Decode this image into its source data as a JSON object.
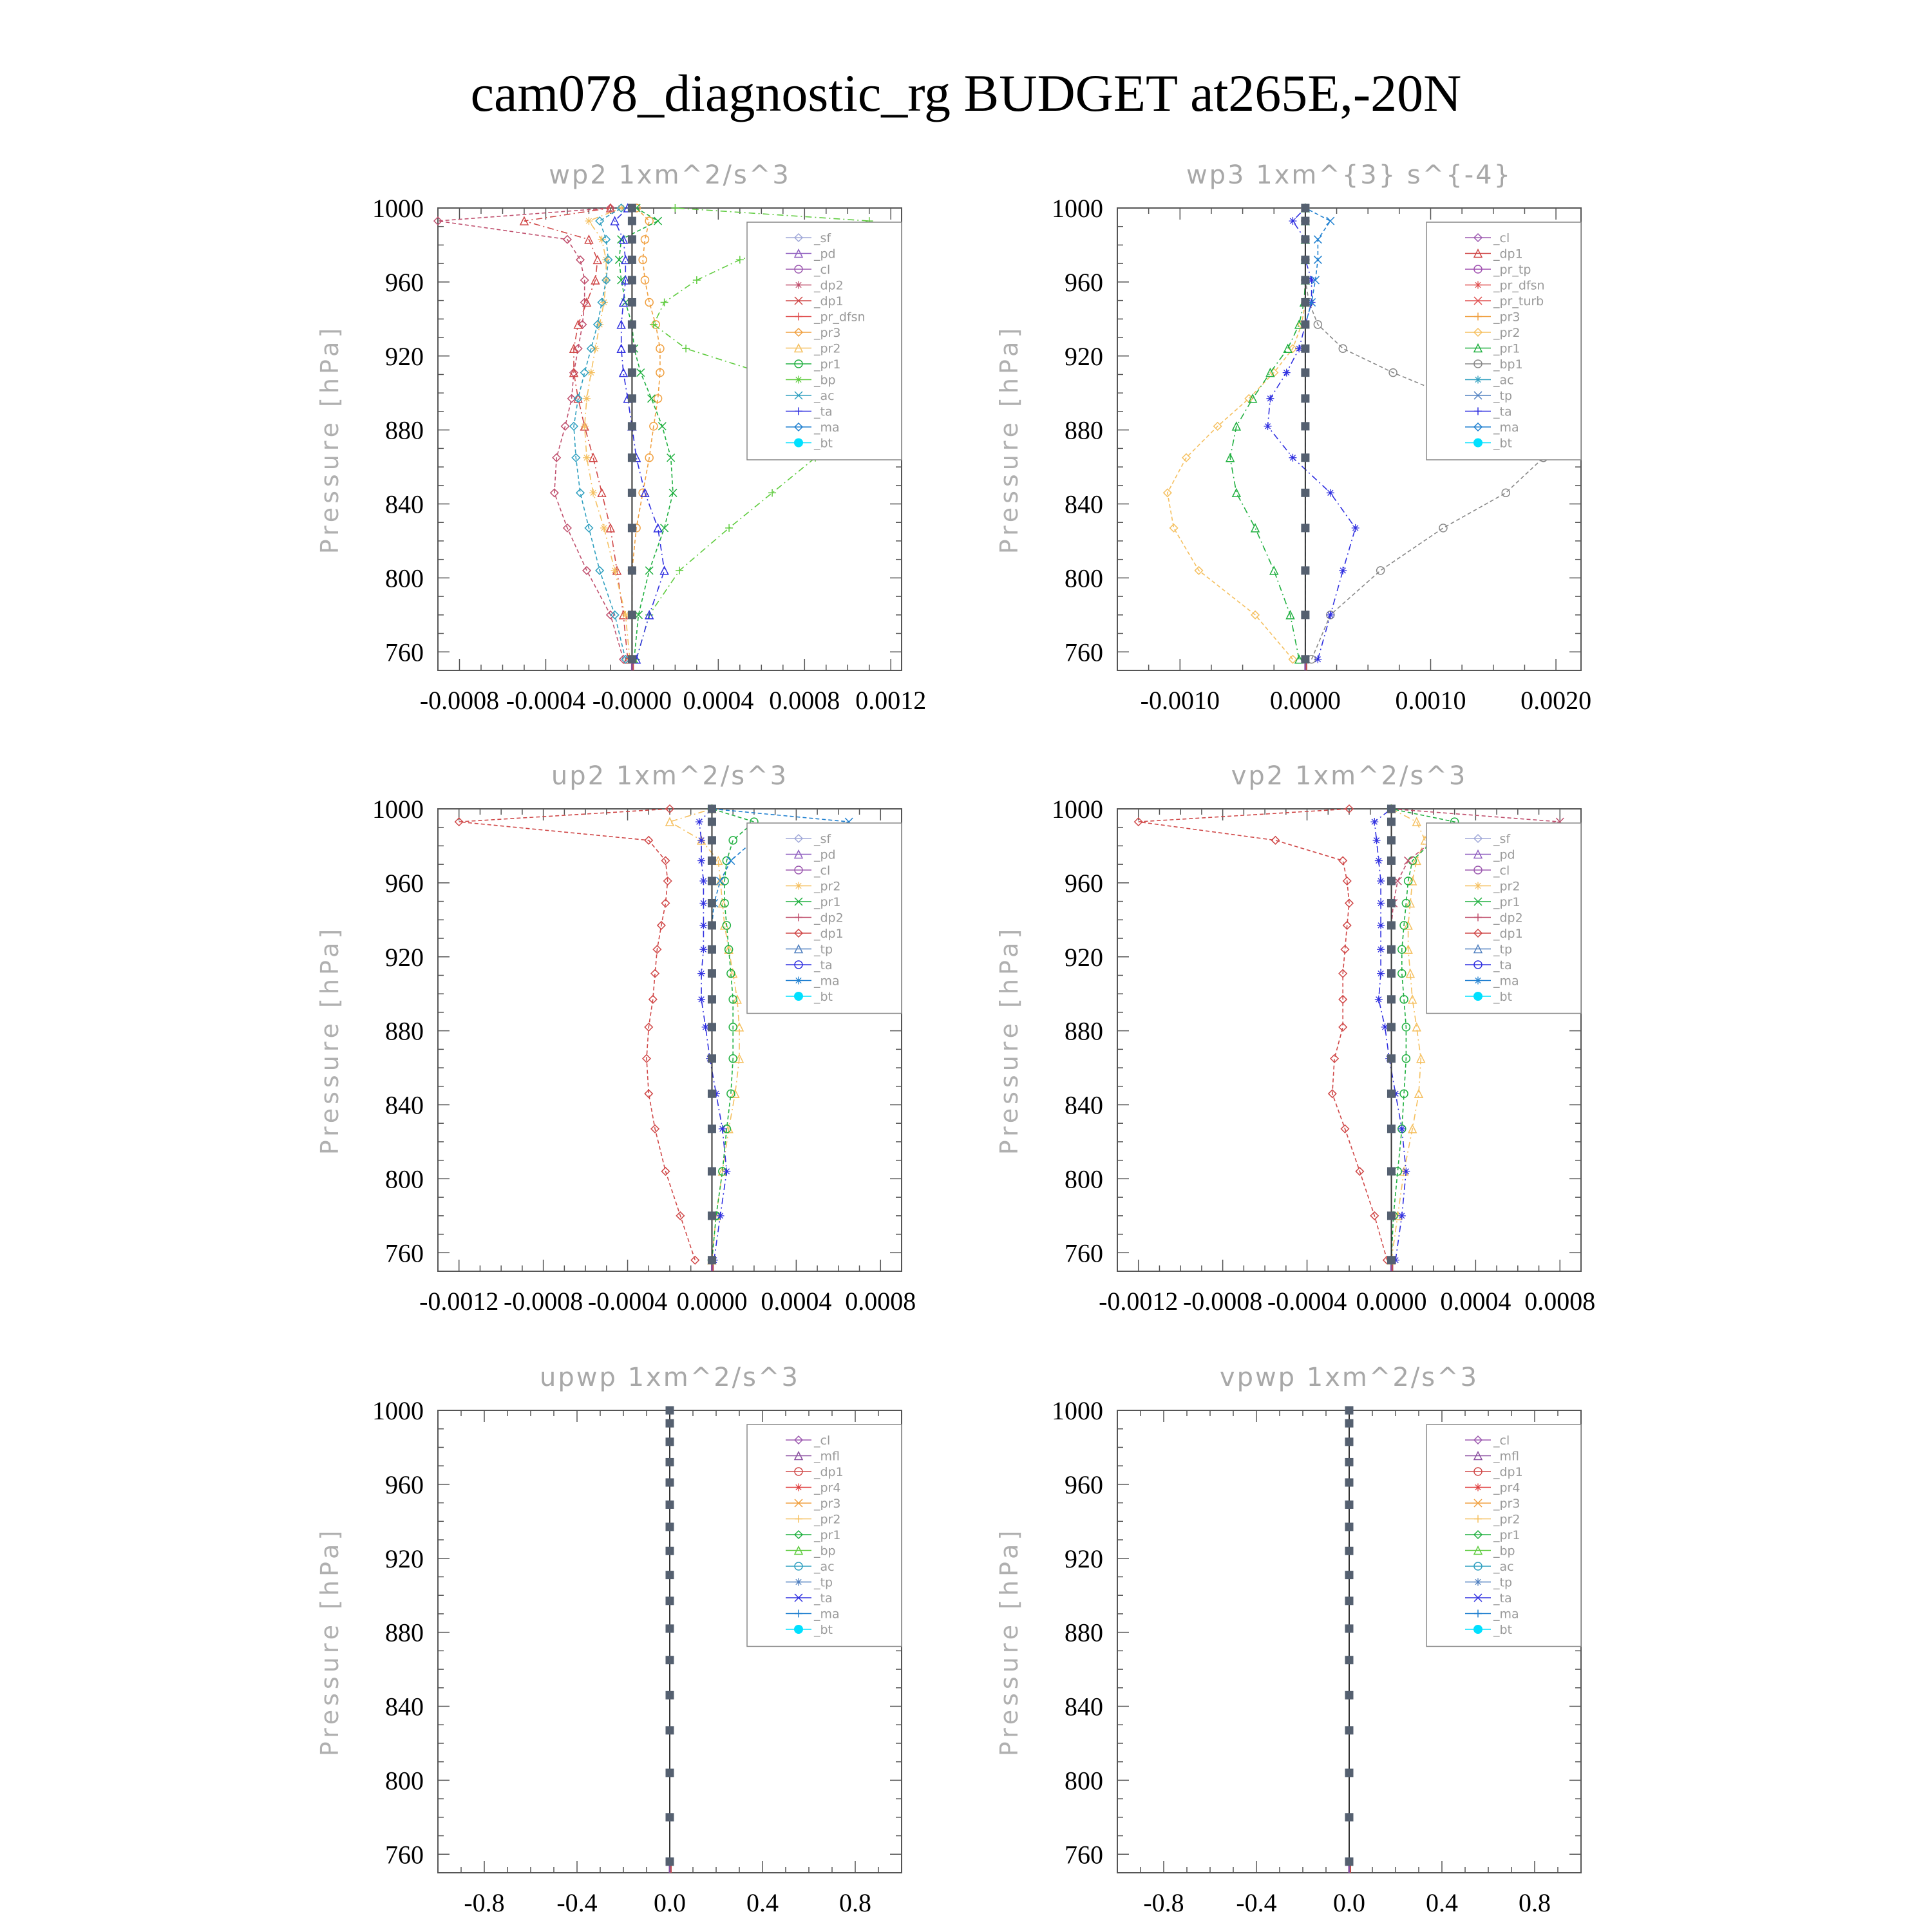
{
  "figure": {
    "title": "cam078_diagnostic_rg  BUDGET at265E,-20N"
  },
  "colors": {
    "sf": "#a0a8d8",
    "pd": "#9060c0",
    "cl": "#9d5ab0",
    "mfl": "#8a4fa0",
    "dp2": "#c0506e",
    "dp1": "#d04848",
    "pr4": "#e04040",
    "pr_dfsn": "#e05050",
    "pr_tp": "#a050b0",
    "pr_turb": "#e05050",
    "pr3": "#f0a040",
    "pr2": "#f5c060",
    "pr1": "#20b040",
    "bp": "#60cc40",
    "ac": "#30a0c0",
    "tp": "#5080c0",
    "ta": "#3030e0",
    "ma": "#2080d0",
    "bt": "#00e0ff"
  },
  "chart_data": [
    {
      "type": "line",
      "title": "wp2   1xm^2/s^3",
      "ylabel": "Pressure  [hPa]",
      "xlim": [
        -0.0009,
        0.00125
      ],
      "ylim": [
        1000,
        750
      ],
      "xticks": [
        -0.0008,
        -0.0004,
        0.0,
        0.0004,
        0.0008,
        0.0012
      ],
      "xtick_labels": [
        "-0.0008",
        "-0.0004",
        "-0.0000",
        "0.0004",
        "0.0008",
        "0.0012"
      ],
      "yticks": [
        760,
        800,
        840,
        880,
        920,
        960,
        1000
      ],
      "legend": [
        "_sf",
        "_pd",
        "_cl",
        "_dp2",
        "_dp1",
        "_pr_dfsn",
        "_pr3",
        "_pr2",
        "_pr1",
        "_bp",
        "_ac",
        "_ta",
        "_ma",
        "_bt"
      ],
      "legend_position": "top-right",
      "y": [
        756,
        780,
        804,
        827,
        846,
        865,
        882,
        897,
        911,
        924,
        937,
        949,
        961,
        972,
        983,
        993,
        1000
      ],
      "series": [
        {
          "name": "_dp2",
          "values": [
            -4e-05,
            -0.0001,
            -0.00021,
            -0.0003,
            -0.00036,
            -0.00035,
            -0.00031,
            -0.00028,
            -0.00027,
            -0.00025,
            -0.00023,
            -0.00022,
            -0.00022,
            -0.00024,
            -0.0003,
            -0.0009,
            -0.0001
          ]
        },
        {
          "name": "_dp1",
          "values": [
            -2e-05,
            -4e-05,
            -7e-05,
            -0.0001,
            -0.00014,
            -0.00018,
            -0.00022,
            -0.00025,
            -0.00027,
            -0.00027,
            -0.00025,
            -0.00021,
            -0.00017,
            -0.00016,
            -0.0002,
            -0.0005,
            -0.0001
          ]
        },
        {
          "name": "_pr3",
          "values": [
            0.0,
            0.0,
            0.0,
            2e-05,
            5e-05,
            8e-05,
            0.0001,
            0.00012,
            0.00013,
            0.00013,
            0.00011,
            8e-05,
            6e-05,
            5e-05,
            6e-05,
            8e-05,
            2e-05
          ]
        },
        {
          "name": "_pr2",
          "values": [
            -1e-05,
            -3e-05,
            -8e-05,
            -0.00013,
            -0.00018,
            -0.00021,
            -0.00022,
            -0.00021,
            -0.00019,
            -0.00017,
            -0.00015,
            -0.00013,
            -0.00012,
            -0.00012,
            -0.00014,
            -0.0002,
            -5e-05
          ]
        },
        {
          "name": "_pr1",
          "values": [
            1e-05,
            3e-05,
            8e-05,
            0.00015,
            0.00019,
            0.00018,
            0.00014,
            9e-05,
            4e-05,
            1e-05,
            0.0,
            -3e-05,
            -5e-05,
            -6e-05,
            -5e-05,
            0.00012,
            2e-05
          ]
        },
        {
          "name": "_bp",
          "values": [
            2e-05,
            8e-05,
            0.00022,
            0.00045,
            0.00065,
            0.00085,
            0.00095,
            0.00088,
            0.0006,
            0.00025,
            0.0001,
            0.00015,
            0.0003,
            0.0005,
            0.0008,
            0.0011,
            0.0002
          ]
        },
        {
          "name": "_ac",
          "values": [
            -3e-05,
            -8e-05,
            -0.00015,
            -0.0002,
            -0.00024,
            -0.00026,
            -0.00027,
            -0.00025,
            -0.00022,
            -0.00019,
            -0.00016,
            -0.00014,
            -0.00012,
            -0.00011,
            -0.00012,
            -0.00015,
            -5e-05
          ]
        },
        {
          "name": "_ta",
          "values": [
            2e-05,
            8e-05,
            0.00015,
            0.00012,
            6e-05,
            2e-05,
            0.0,
            -2e-05,
            -4e-05,
            -5e-05,
            -5e-05,
            -4e-05,
            -3e-05,
            -3e-05,
            -4e-05,
            -8e-05,
            -2e-05
          ]
        },
        {
          "name": "_bt",
          "values": [
            0.0,
            0.0,
            0.0,
            0.0,
            0.0,
            0.0,
            0.0,
            0.0,
            0.0,
            0.0,
            0.0,
            0.0,
            0.0,
            0.0,
            0.0,
            0.0,
            0.0
          ]
        }
      ]
    },
    {
      "type": "line",
      "title": "wp3   1xm^{3} s^{-4}",
      "ylabel": "Pressure  [hPa]",
      "xlim": [
        -0.0015,
        0.0022
      ],
      "ylim": [
        1000,
        750
      ],
      "xticks": [
        -0.001,
        0.0,
        0.001,
        0.002
      ],
      "xtick_labels": [
        "-0.0010",
        "0.0000",
        "0.0010",
        "0.0020"
      ],
      "yticks": [
        760,
        800,
        840,
        880,
        920,
        960,
        1000
      ],
      "legend": [
        "_cl",
        "_dp1",
        "_pr_tp",
        "_pr_dfsn",
        "_pr_turb",
        "_pr3",
        "_pr2",
        "_pr1",
        "_bp1",
        "_ac",
        "_tp",
        "_ta",
        "_ma",
        "_bt"
      ],
      "legend_position": "top-right",
      "y": [
        756,
        780,
        804,
        827,
        846,
        865,
        882,
        897,
        911,
        924,
        937,
        949,
        961,
        972,
        983,
        993,
        1000
      ],
      "series": [
        {
          "name": "_pr2",
          "values": [
            -0.0001,
            -0.0004,
            -0.00085,
            -0.00105,
            -0.0011,
            -0.00095,
            -0.0007,
            -0.00045,
            -0.00025,
            -0.0001,
            -3e-05,
            0.0,
            0.0,
            0.0,
            0.0,
            0.0,
            0.0
          ]
        },
        {
          "name": "_pr1",
          "values": [
            -5e-05,
            -0.00012,
            -0.00025,
            -0.0004,
            -0.00055,
            -0.0006,
            -0.00055,
            -0.00042,
            -0.00028,
            -0.00014,
            -5e-05,
            -1e-05,
            0.0,
            0.0,
            0.0,
            0.0,
            0.0
          ]
        },
        {
          "name": "_bp1",
          "values": [
            5e-05,
            0.0002,
            0.0006,
            0.0011,
            0.0016,
            0.0019,
            0.0017,
            0.0012,
            0.0007,
            0.0003,
            0.0001,
            3e-05,
            0.0,
            0.0,
            0.0,
            0.0,
            0.0
          ]
        },
        {
          "name": "_ta",
          "values": [
            0.0001,
            0.0002,
            0.0003,
            0.0004,
            0.0002,
            -0.0001,
            -0.0003,
            -0.00028,
            -0.00015,
            -5e-05,
            0.0,
            5e-05,
            5e-05,
            0.0,
            0.0,
            -0.0001,
            0.0
          ]
        },
        {
          "name": "_ma",
          "values": [
            0.0,
            0.0,
            0.0,
            0.0,
            0.0,
            0.0,
            0.0,
            0.0,
            0.0,
            0.0,
            0.0,
            5e-05,
            8e-05,
            0.0001,
            0.0001,
            0.0002,
            0.0
          ]
        },
        {
          "name": "_bt",
          "values": [
            0.0,
            0.0,
            0.0,
            0.0,
            0.0,
            0.0,
            0.0,
            0.0,
            0.0,
            0.0,
            0.0,
            0.0,
            0.0,
            0.0,
            0.0,
            0.0,
            0.0
          ]
        }
      ]
    },
    {
      "type": "line",
      "title": "up2   1xm^2/s^3",
      "ylabel": "Pressure  [hPa]",
      "xlim": [
        -0.0013,
        0.0009
      ],
      "ylim": [
        1000,
        750
      ],
      "xticks": [
        -0.0012,
        -0.0008,
        -0.0004,
        0.0,
        0.0004,
        0.0008
      ],
      "xtick_labels": [
        "-0.0012",
        "-0.0008",
        "-0.0004",
        "0.0000",
        "0.0004",
        "0.0008"
      ],
      "yticks": [
        760,
        800,
        840,
        880,
        920,
        960,
        1000
      ],
      "legend": [
        "_sf",
        "_pd",
        "_cl",
        "_pr2",
        "_pr1",
        "_dp2",
        "_dp1",
        "_tp",
        "_ta",
        "_ma",
        "_bt"
      ],
      "legend_position": "top-right",
      "y": [
        756,
        780,
        804,
        827,
        846,
        865,
        882,
        897,
        911,
        924,
        937,
        949,
        961,
        972,
        983,
        993,
        1000
      ],
      "series": [
        {
          "name": "_dp1",
          "values": [
            -8e-05,
            -0.00015,
            -0.00022,
            -0.00027,
            -0.0003,
            -0.00031,
            -0.0003,
            -0.00028,
            -0.00027,
            -0.00026,
            -0.00024,
            -0.00022,
            -0.00021,
            -0.00022,
            -0.0003,
            -0.0012,
            -0.0002
          ]
        },
        {
          "name": "_pr2",
          "values": [
            0.0,
            2e-05,
            5e-05,
            8e-05,
            0.00011,
            0.00013,
            0.00013,
            0.00012,
            0.0001,
            8e-05,
            6e-05,
            5e-05,
            4e-05,
            3e-05,
            -5e-05,
            -0.0002,
            0.0
          ]
        },
        {
          "name": "_pr1",
          "values": [
            0.0,
            2e-05,
            5e-05,
            7e-05,
            9e-05,
            0.0001,
            0.0001,
            0.0001,
            9e-05,
            8e-05,
            7e-05,
            6e-05,
            6e-05,
            7e-05,
            0.0001,
            0.0002,
            0.0
          ]
        },
        {
          "name": "_ta",
          "values": [
            1e-05,
            4e-05,
            7e-05,
            5e-05,
            2e-05,
            -1e-05,
            -3e-05,
            -5e-05,
            -5e-05,
            -4e-05,
            -4e-05,
            -4e-05,
            -4e-05,
            -5e-05,
            -5e-05,
            -6e-05,
            0.0
          ]
        },
        {
          "name": "_ma",
          "values": [
            0.0,
            0.0,
            0.0,
            0.0,
            0.0,
            0.0,
            0.0,
            0.0,
            0.0,
            0.0,
            0.0,
            1e-05,
            4e-05,
            9e-05,
            0.0002,
            0.00065,
            0.0
          ]
        },
        {
          "name": "_bt",
          "values": [
            0.0,
            0.0,
            0.0,
            0.0,
            0.0,
            0.0,
            0.0,
            0.0,
            0.0,
            0.0,
            0.0,
            0.0,
            0.0,
            0.0,
            0.0,
            0.0,
            0.0
          ]
        }
      ]
    },
    {
      "type": "line",
      "title": "vp2   1xm^2/s^3",
      "ylabel": "Pressure  [hPa]",
      "xlim": [
        -0.0013,
        0.0009
      ],
      "ylim": [
        1000,
        750
      ],
      "xticks": [
        -0.0012,
        -0.0008,
        -0.0004,
        0.0,
        0.0004,
        0.0008
      ],
      "xtick_labels": [
        "-0.0012",
        "-0.0008",
        "-0.0004",
        "0.0000",
        "0.0004",
        "0.0008"
      ],
      "yticks": [
        760,
        800,
        840,
        880,
        920,
        960,
        1000
      ],
      "legend": [
        "_sf",
        "_pd",
        "_cl",
        "_pr2",
        "_pr1",
        "_dp2",
        "_dp1",
        "_tp",
        "_ta",
        "_ma",
        "_bt"
      ],
      "legend_position": "top-right",
      "y": [
        756,
        780,
        804,
        827,
        846,
        865,
        882,
        897,
        911,
        924,
        937,
        949,
        961,
        972,
        983,
        993,
        1000
      ],
      "series": [
        {
          "name": "_dp1",
          "values": [
            -2e-05,
            -8e-05,
            -0.00015,
            -0.00022,
            -0.00028,
            -0.00027,
            -0.00023,
            -0.00023,
            -0.00023,
            -0.00022,
            -0.00021,
            -0.0002,
            -0.00021,
            -0.00023,
            -0.00055,
            -0.0012,
            -0.0002
          ]
        },
        {
          "name": "_pr2",
          "values": [
            0.0,
            3e-05,
            6e-05,
            0.0001,
            0.00013,
            0.00014,
            0.00012,
            0.0001,
            9e-05,
            8e-05,
            8e-05,
            9e-05,
            0.0001,
            0.00012,
            0.00016,
            0.00012,
            0.0
          ]
        },
        {
          "name": "_pr1",
          "values": [
            0.0,
            1e-05,
            3e-05,
            5e-05,
            6e-05,
            7e-05,
            7e-05,
            6e-05,
            5e-05,
            5e-05,
            6e-05,
            7e-05,
            8e-05,
            0.0001,
            0.0002,
            0.0003,
            0.0
          ]
        },
        {
          "name": "_ta",
          "values": [
            2e-05,
            5e-05,
            7e-05,
            5e-05,
            2e-05,
            -1e-05,
            -3e-05,
            -6e-05,
            -5e-05,
            -5e-05,
            -5e-05,
            -5e-05,
            -5e-05,
            -6e-05,
            -7e-05,
            -8e-05,
            0.0
          ]
        },
        {
          "name": "_dp2",
          "values": [
            0.0,
            0.0,
            0.0,
            0.0,
            0.0,
            0.0,
            0.0,
            0.0,
            0.0,
            0.0,
            0.0,
            1e-05,
            3e-05,
            8e-05,
            0.0002,
            0.0008,
            0.0
          ]
        },
        {
          "name": "_bt",
          "values": [
            0.0,
            0.0,
            0.0,
            0.0,
            0.0,
            0.0,
            0.0,
            0.0,
            0.0,
            0.0,
            0.0,
            0.0,
            0.0,
            0.0,
            0.0,
            0.0,
            0.0
          ]
        }
      ]
    },
    {
      "type": "line",
      "title": "upwp   1xm^2/s^3",
      "ylabel": "Pressure  [hPa]",
      "xlim": [
        -1.0,
        1.0
      ],
      "ylim": [
        1000,
        750
      ],
      "xticks": [
        -0.8,
        -0.4,
        0.0,
        0.4,
        0.8
      ],
      "xtick_labels": [
        "-0.8",
        "-0.4",
        "0.0",
        "0.4",
        "0.8"
      ],
      "yticks": [
        760,
        800,
        840,
        880,
        920,
        960,
        1000
      ],
      "legend": [
        "_cl",
        "_mfl",
        "_dp1",
        "_pr4",
        "_pr3",
        "_pr2",
        "_pr1",
        "_bp",
        "_ac",
        "_tp",
        "_ta",
        "_ma",
        "_bt"
      ],
      "legend_position": "top-right",
      "y": [
        756,
        780,
        804,
        827,
        846,
        865,
        882,
        897,
        911,
        924,
        937,
        949,
        961,
        972,
        983,
        993,
        1000
      ],
      "series": [
        {
          "name": "_bt",
          "values": [
            0.0,
            0.0,
            0.0,
            0.0,
            0.0,
            0.0,
            0.0,
            0.0,
            0.0,
            0.0,
            0.0,
            0.0,
            0.0,
            0.0,
            0.0,
            0.0,
            0.0
          ]
        }
      ]
    },
    {
      "type": "line",
      "title": "vpwp   1xm^2/s^3",
      "ylabel": "Pressure  [hPa]",
      "xlim": [
        -1.0,
        1.0
      ],
      "ylim": [
        1000,
        750
      ],
      "xticks": [
        -0.8,
        -0.4,
        0.0,
        0.4,
        0.8
      ],
      "xtick_labels": [
        "-0.8",
        "-0.4",
        "0.0",
        "0.4",
        "0.8"
      ],
      "yticks": [
        760,
        800,
        840,
        880,
        920,
        960,
        1000
      ],
      "legend": [
        "_cl",
        "_mfl",
        "_dp1",
        "_pr4",
        "_pr3",
        "_pr2",
        "_pr1",
        "_bp",
        "_ac",
        "_tp",
        "_ta",
        "_ma",
        "_bt"
      ],
      "legend_position": "top-right",
      "y": [
        756,
        780,
        804,
        827,
        846,
        865,
        882,
        897,
        911,
        924,
        937,
        949,
        961,
        972,
        983,
        993,
        1000
      ],
      "series": [
        {
          "name": "_bt",
          "values": [
            0.0,
            0.0,
            0.0,
            0.0,
            0.0,
            0.0,
            0.0,
            0.0,
            0.0,
            0.0,
            0.0,
            0.0,
            0.0,
            0.0,
            0.0,
            0.0,
            0.0
          ]
        }
      ]
    }
  ]
}
